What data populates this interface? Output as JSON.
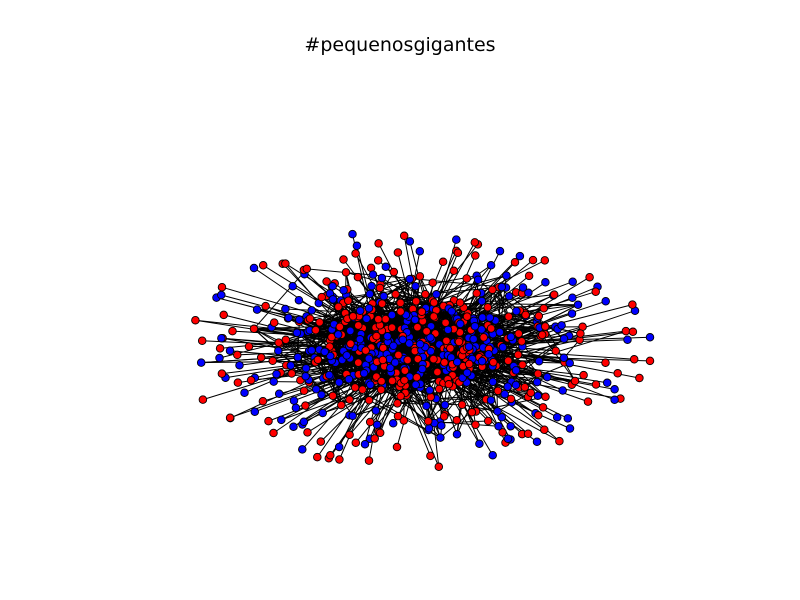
{
  "title": "#pequenosgigantes",
  "colors": {
    "background": "#ffffff",
    "edge": "#000000",
    "node_outline": "#000000",
    "node_red": "#ff0000",
    "node_blue": "#0000ff"
  }
}
